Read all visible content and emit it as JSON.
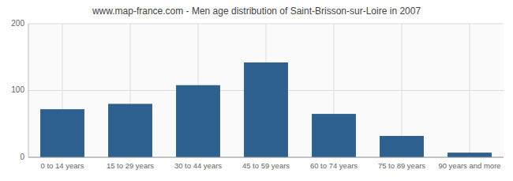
{
  "chart_data": {
    "type": "bar",
    "title": "www.map-france.com - Men age distribution of Saint-Brisson-sur-Loire in 2007",
    "categories": [
      "0 to 14 years",
      "15 to 29 years",
      "30 to 44 years",
      "45 to 59 years",
      "60 to 74 years",
      "75 to 89 years",
      "90 years and more"
    ],
    "values": [
      72,
      80,
      108,
      142,
      65,
      32,
      7
    ],
    "color": "#2e6090",
    "ylim": [
      0,
      200
    ],
    "yticks": [
      0,
      100,
      200
    ],
    "grid": true
  }
}
